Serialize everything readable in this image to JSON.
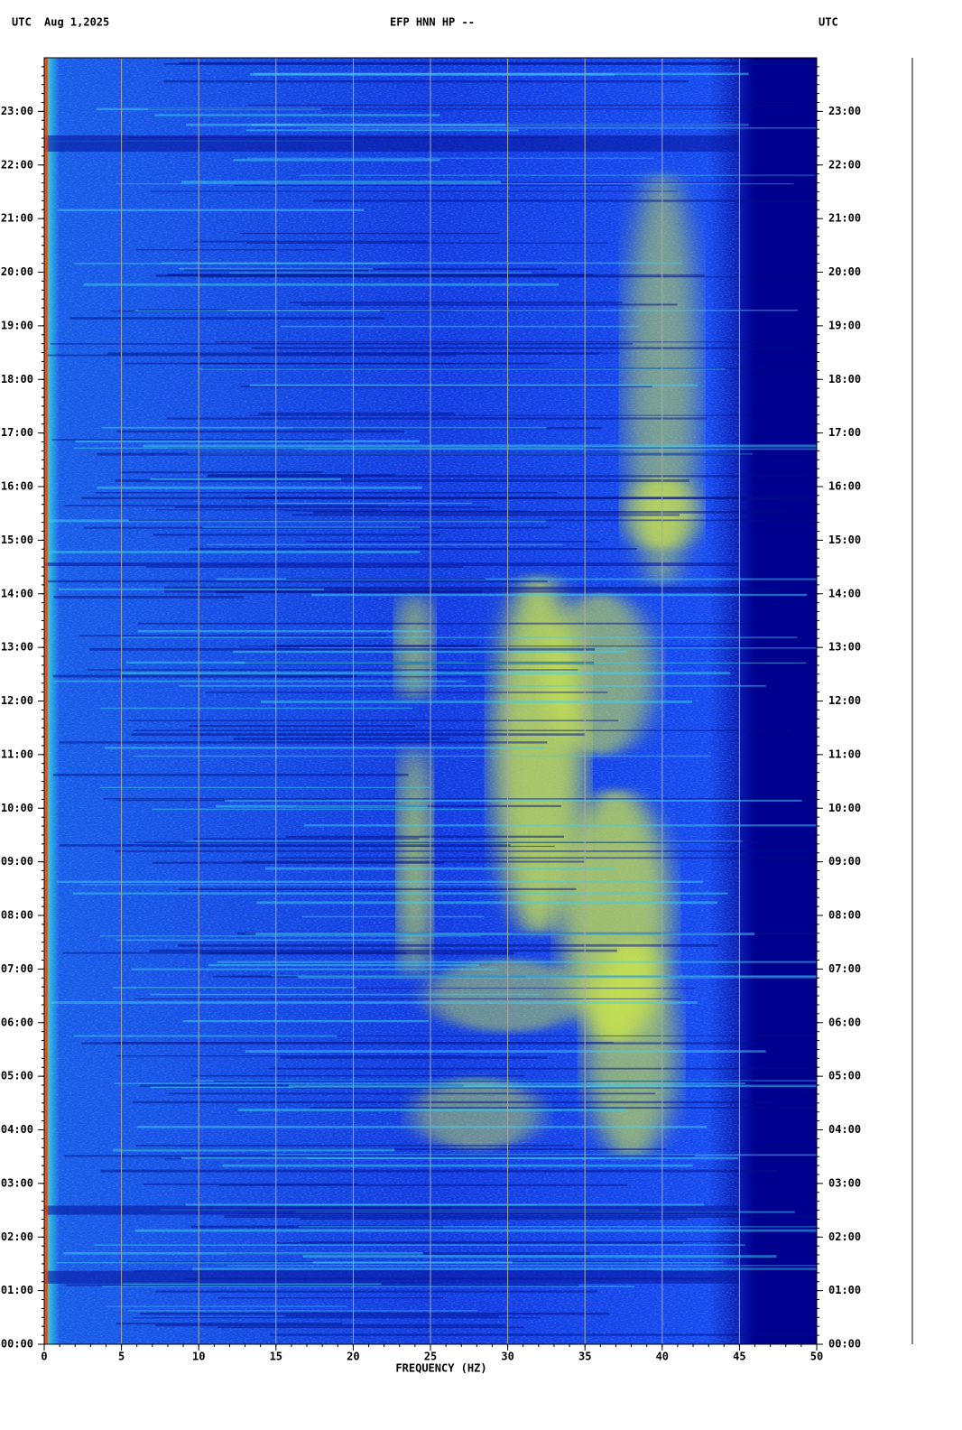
{
  "chart_data": {
    "type": "spectrogram",
    "title": "EFP HNN HP --",
    "left_label": "UTC",
    "date": "Aug 1,2025",
    "right_label": "UTC",
    "xlabel": "FREQUENCY (HZ)",
    "xlim": [
      0,
      50
    ],
    "xticks": [
      0,
      5,
      10,
      15,
      20,
      25,
      30,
      35,
      40,
      45,
      50
    ],
    "ylim": [
      0,
      24
    ],
    "yticks": [
      {
        "value": 0,
        "label": "00:00"
      },
      {
        "value": 1,
        "label": "01:00"
      },
      {
        "value": 2,
        "label": "02:00"
      },
      {
        "value": 3,
        "label": "03:00"
      },
      {
        "value": 4,
        "label": "04:00"
      },
      {
        "value": 5,
        "label": "05:00"
      },
      {
        "value": 6,
        "label": "06:00"
      },
      {
        "value": 7,
        "label": "07:00"
      },
      {
        "value": 8,
        "label": "08:00"
      },
      {
        "value": 9,
        "label": "09:00"
      },
      {
        "value": 10,
        "label": "10:00"
      },
      {
        "value": 11,
        "label": "11:00"
      },
      {
        "value": 12,
        "label": "12:00"
      },
      {
        "value": 13,
        "label": "13:00"
      },
      {
        "value": 14,
        "label": "14:00"
      },
      {
        "value": 15,
        "label": "15:00"
      },
      {
        "value": 16,
        "label": "16:00"
      },
      {
        "value": 17,
        "label": "17:00"
      },
      {
        "value": 18,
        "label": "18:00"
      },
      {
        "value": 19,
        "label": "19:00"
      },
      {
        "value": 20,
        "label": "20:00"
      },
      {
        "value": 21,
        "label": "21:00"
      },
      {
        "value": 22,
        "label": "22:00"
      },
      {
        "value": 23,
        "label": "23:00"
      }
    ],
    "grid": true
  }
}
